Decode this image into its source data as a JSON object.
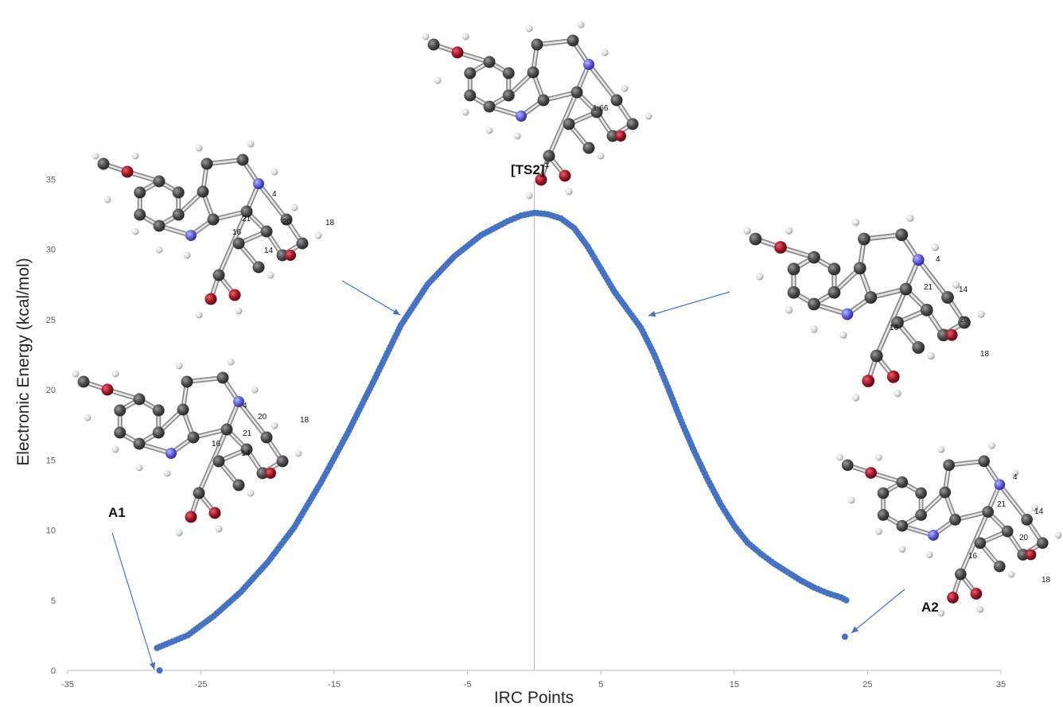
{
  "chart_data": {
    "type": "scatter",
    "xlabel": "IRC Points",
    "ylabel": "Electronic Energy (kcal/mol)",
    "xlim": [
      -35,
      35
    ],
    "ylim": [
      0,
      37
    ],
    "x_ticks": [
      -35,
      -25,
      -15,
      -5,
      5,
      15,
      25,
      35
    ],
    "y_ticks": [
      0,
      5,
      10,
      15,
      20,
      25,
      30,
      35
    ],
    "grid": false,
    "marker_color": "#4472C4",
    "vertical_reference_line_x": 0,
    "series": [
      {
        "curve_points": [
          [
            -28.3,
            1.6
          ],
          [
            -26,
            2.5
          ],
          [
            -24,
            3.9
          ],
          [
            -22,
            5.6
          ],
          [
            -20,
            7.7
          ],
          [
            -18,
            10.2
          ],
          [
            -16,
            13.4
          ],
          [
            -14,
            16.9
          ],
          [
            -12,
            20.7
          ],
          [
            -10,
            24.6
          ],
          [
            -8,
            27.5
          ],
          [
            -6,
            29.5
          ],
          [
            -4,
            31.0
          ],
          [
            -2,
            32.0
          ],
          [
            -1,
            32.4
          ],
          [
            0,
            32.6
          ],
          [
            1,
            32.5
          ],
          [
            2,
            32.2
          ],
          [
            3,
            31.5
          ],
          [
            4,
            30.2
          ],
          [
            5,
            28.6
          ],
          [
            6,
            27.0
          ],
          [
            7,
            25.7
          ],
          [
            8,
            24.4
          ],
          [
            9,
            22.5
          ],
          [
            10,
            20.2
          ],
          [
            11,
            17.8
          ],
          [
            12,
            15.6
          ],
          [
            13,
            13.6
          ],
          [
            14,
            11.8
          ],
          [
            15,
            10.3
          ],
          [
            16,
            9.1
          ],
          [
            17,
            8.3
          ],
          [
            18,
            7.6
          ],
          [
            19,
            7.0
          ],
          [
            20,
            6.4
          ],
          [
            21,
            5.9
          ],
          [
            22,
            5.5
          ],
          [
            23,
            5.2
          ],
          [
            23.4,
            5.0
          ]
        ],
        "isolated_points": [
          [
            -28.1,
            0.0
          ],
          [
            23.3,
            2.4
          ]
        ]
      }
    ],
    "annotations": {
      "ts_label": "[TS2]",
      "ts_superscript": "‡",
      "a1_label": "A1",
      "a2_label": "A2",
      "bond_length": "1.66"
    }
  },
  "molecule_numbers": {
    "a1": [
      "4",
      "16",
      "21",
      "14",
      "20",
      "18"
    ],
    "left_mid": [
      "4",
      "21",
      "20",
      "16",
      "14",
      "18"
    ],
    "right_mid": [
      "4",
      "21",
      "14",
      "16",
      "20",
      "18"
    ],
    "a2": [
      "4",
      "21",
      "14",
      "16",
      "20",
      "18"
    ]
  }
}
